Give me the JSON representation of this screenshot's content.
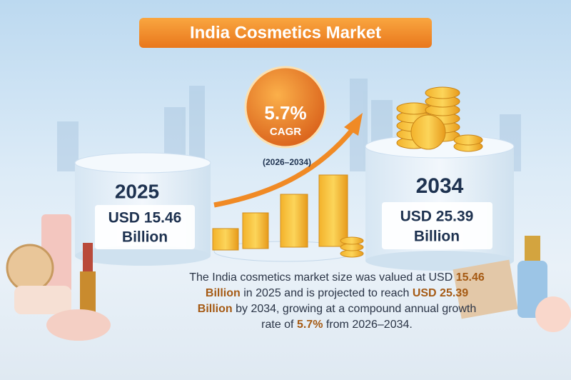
{
  "title": "India Cosmetics Market",
  "cagr": {
    "value": "5.7%",
    "label": "CAGR",
    "period": "(2026–2034)"
  },
  "start": {
    "year": "2025",
    "amount": "USD 15.46",
    "unit": "Billion"
  },
  "end": {
    "year": "2034",
    "amount": "USD 25.39",
    "unit": "Billion"
  },
  "description": [
    "The India cosmetics market size was valued at USD ",
    "15.46 Billion",
    " in 2025 and is projected to reach ",
    "USD 25.39 Billion",
    " by 2034, growing at a compound annual growth rate of ",
    "5.7%",
    " from 2026–2034."
  ]
}
